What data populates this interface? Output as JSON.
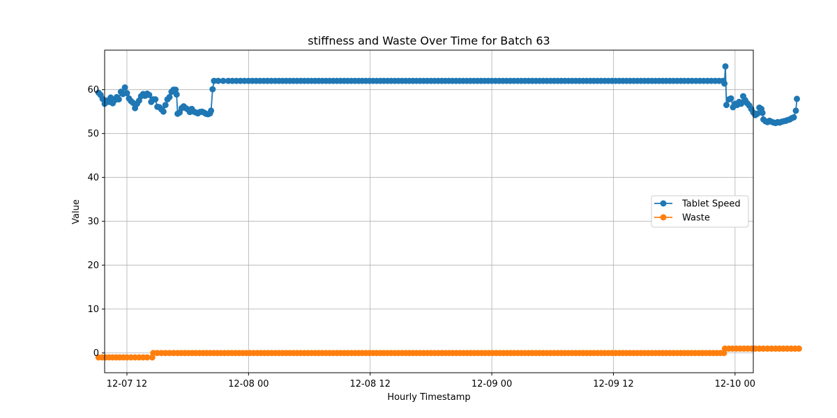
{
  "chart_data": {
    "type": "line",
    "title": "stiffness and Waste Over Time for Batch 63",
    "xlabel": "Hourly Timestamp",
    "ylabel": "Value",
    "ylim": [
      -4.5,
      69
    ],
    "yticks": [
      0,
      10,
      20,
      30,
      40,
      50,
      60
    ],
    "xlim_hours": [
      -2.2,
      61.8
    ],
    "xticks": [
      {
        "label": "12-07 12",
        "hour": 0
      },
      {
        "label": "12-08 00",
        "hour": 12
      },
      {
        "label": "12-08 12",
        "hour": 24
      },
      {
        "label": "12-09 00",
        "hour": 36
      },
      {
        "label": "12-09 12",
        "hour": 48
      },
      {
        "label": "12-10 00",
        "hour": 60
      }
    ],
    "grid": true,
    "legend_position": "center-right",
    "x_note": "x values are hours since 2023-12-07 12:00",
    "series": [
      {
        "name": "Tablet Speed",
        "color": "#1f77b4",
        "points": [
          [
            -2.8,
            59.3
          ],
          [
            -2.6,
            58.8
          ],
          [
            -2.4,
            57.9
          ],
          [
            -2.2,
            56.8
          ],
          [
            -2.0,
            57.5
          ],
          [
            -1.8,
            57.2
          ],
          [
            -1.6,
            58.2
          ],
          [
            -1.4,
            56.9
          ],
          [
            -1.2,
            57.6
          ],
          [
            -1.0,
            58.3
          ],
          [
            -0.8,
            57.8
          ],
          [
            -0.6,
            59.5
          ],
          [
            -0.4,
            59.0
          ],
          [
            -0.2,
            60.5
          ],
          [
            0.0,
            59.2
          ],
          [
            0.2,
            58.0
          ],
          [
            0.4,
            57.4
          ],
          [
            0.6,
            57.0
          ],
          [
            0.8,
            55.8
          ],
          [
            1.0,
            56.8
          ],
          [
            1.2,
            57.5
          ],
          [
            1.4,
            58.5
          ],
          [
            1.6,
            59.0
          ],
          [
            1.8,
            58.6
          ],
          [
            2.0,
            59.1
          ],
          [
            2.2,
            58.8
          ],
          [
            2.4,
            57.2
          ],
          [
            2.6,
            57.8
          ],
          [
            2.8,
            57.8
          ],
          [
            3.0,
            56.1
          ],
          [
            3.2,
            56.0
          ],
          [
            3.4,
            55.5
          ],
          [
            3.6,
            55.0
          ],
          [
            3.8,
            56.5
          ],
          [
            4.0,
            57.8
          ],
          [
            4.2,
            58.3
          ],
          [
            4.4,
            59.5
          ],
          [
            4.6,
            60.0
          ],
          [
            4.8,
            60.0
          ],
          [
            4.9,
            58.9
          ],
          [
            5.0,
            54.5
          ],
          [
            5.2,
            54.8
          ],
          [
            5.4,
            55.8
          ],
          [
            5.6,
            56.2
          ],
          [
            5.8,
            55.8
          ],
          [
            6.0,
            55.5
          ],
          [
            6.2,
            54.9
          ],
          [
            6.4,
            55.6
          ],
          [
            6.6,
            55.0
          ],
          [
            6.8,
            54.8
          ],
          [
            7.0,
            54.6
          ],
          [
            7.2,
            54.9
          ],
          [
            7.4,
            55.0
          ],
          [
            7.6,
            54.8
          ],
          [
            7.8,
            54.5
          ],
          [
            8.0,
            54.4
          ],
          [
            8.2,
            54.6
          ],
          [
            8.3,
            55.2
          ],
          [
            8.45,
            60.1
          ],
          [
            8.6,
            62.0
          ],
          [
            9.0,
            62.0
          ],
          [
            10.0,
            62.0
          ],
          [
            12.0,
            62.0
          ],
          [
            15.0,
            62.0
          ],
          [
            20.0,
            62.0
          ],
          [
            25.0,
            62.0
          ],
          [
            30.0,
            62.0
          ],
          [
            36.0,
            62.0
          ],
          [
            40.0,
            62.0
          ],
          [
            45.0,
            62.0
          ],
          [
            50.0,
            62.0
          ],
          [
            55.0,
            62.0
          ],
          [
            58.8,
            62.0
          ],
          [
            58.95,
            61.4
          ],
          [
            59.05,
            65.3
          ],
          [
            59.15,
            56.5
          ],
          [
            59.4,
            57.8
          ],
          [
            59.6,
            58.0
          ],
          [
            59.8,
            56.0
          ],
          [
            60.0,
            56.8
          ],
          [
            60.2,
            56.5
          ],
          [
            60.4,
            57.2
          ],
          [
            60.6,
            56.8
          ],
          [
            60.8,
            58.5
          ],
          [
            61.0,
            57.6
          ],
          [
            61.2,
            56.9
          ],
          [
            61.4,
            56.4
          ],
          [
            61.6,
            55.6
          ],
          [
            61.8,
            54.8
          ],
          [
            62.0,
            54.2
          ],
          [
            62.2,
            54.5
          ],
          [
            62.4,
            55.9
          ],
          [
            62.6,
            55.6
          ],
          [
            62.7,
            54.7
          ],
          [
            62.8,
            53.2
          ],
          [
            63.0,
            52.8
          ],
          [
            63.2,
            52.6
          ],
          [
            63.4,
            52.9
          ],
          [
            63.6,
            52.7
          ],
          [
            63.8,
            52.5
          ],
          [
            64.0,
            52.4
          ],
          [
            64.2,
            52.6
          ],
          [
            64.4,
            52.5
          ],
          [
            64.6,
            52.7
          ],
          [
            64.8,
            52.8
          ],
          [
            65.0,
            52.9
          ],
          [
            65.2,
            53.1
          ],
          [
            65.4,
            53.2
          ],
          [
            65.6,
            53.5
          ],
          [
            65.8,
            53.7
          ],
          [
            66.0,
            55.2
          ],
          [
            66.1,
            57.9
          ]
        ]
      },
      {
        "name": "Waste",
        "color": "#ff7f0e",
        "points": [
          [
            -2.8,
            -1.0
          ],
          [
            0.0,
            -1.0
          ],
          [
            2.0,
            -1.0
          ],
          [
            2.5,
            -1.0
          ],
          [
            2.6,
            0.0
          ],
          [
            5.0,
            0.0
          ],
          [
            10.0,
            0.0
          ],
          [
            15.0,
            0.0
          ],
          [
            20.0,
            0.0
          ],
          [
            25.0,
            0.0
          ],
          [
            30.0,
            0.0
          ],
          [
            35.0,
            0.0
          ],
          [
            40.0,
            0.0
          ],
          [
            45.0,
            0.0
          ],
          [
            50.0,
            0.0
          ],
          [
            55.0,
            0.0
          ],
          [
            58.9,
            0.0
          ],
          [
            59.0,
            1.0
          ],
          [
            62.0,
            1.0
          ],
          [
            64.0,
            1.0
          ],
          [
            66.3,
            1.0
          ]
        ]
      }
    ]
  }
}
